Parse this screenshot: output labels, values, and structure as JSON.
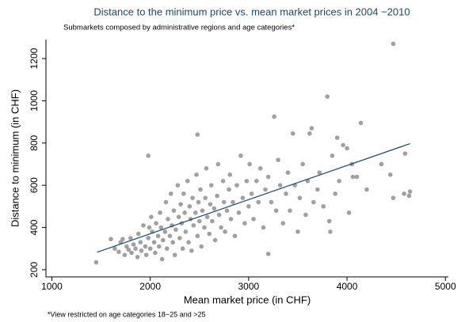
{
  "chart_data": {
    "type": "scatter",
    "title": "Distance to the minimum price vs. mean market prices in 2004 −2010",
    "subtitle": "Submarkets composed by administrative regions and age categories*",
    "xlabel": "Mean market price (in CHF)",
    "ylabel": "Distance to minimum (in CHF)",
    "note": "*View restricted on age categories 18−25 and >25",
    "color": "#a0a0a0",
    "x": [
      1450,
      1600,
      1640,
      1680,
      1700,
      1720,
      1740,
      1760,
      1780,
      1800,
      1810,
      1830,
      1850,
      1870,
      1880,
      1900,
      1910,
      1930,
      1950,
      1960,
      1980,
      1990,
      2000,
      2010,
      2020,
      2040,
      2050,
      2060,
      2080,
      2090,
      2100,
      2110,
      2120,
      2130,
      2150,
      2160,
      2170,
      2180,
      2200,
      2210,
      2220,
      2230,
      2240,
      2250,
      2260,
      2280,
      2290,
      2300,
      2310,
      2320,
      2330,
      2340,
      2350,
      2360,
      2380,
      2390,
      2400,
      2410,
      2420,
      2430,
      2440,
      2460,
      2470,
      2480,
      2490,
      2500,
      2510,
      2520,
      2530,
      2550,
      2560,
      2570,
      2580,
      2600,
      2610,
      2620,
      2630,
      2650,
      2660,
      2680,
      2690,
      2700,
      2720,
      2740,
      2750,
      2760,
      2780,
      2800,
      2810,
      2820,
      2840,
      2860,
      2880,
      2900,
      2920,
      2940,
      2960,
      2980,
      3000,
      3010,
      3030,
      3050,
      3080,
      3100,
      3120,
      3150,
      3170,
      3200,
      3200,
      3230,
      3260,
      3280,
      3300,
      3320,
      3350,
      3380,
      3400,
      3420,
      3450,
      3470,
      3500,
      3520,
      3550,
      3580,
      3600,
      3620,
      3640,
      3660,
      3700,
      3720,
      3760,
      3800,
      3820,
      3830,
      3850,
      3880,
      3900,
      3920,
      3960,
      4000,
      4020,
      4050,
      4060,
      4100,
      4140,
      4200,
      4440,
      4470,
      4470,
      4580,
      4590,
      4630,
      4640,
      1980,
      2480,
      4350
    ],
    "values": [
      235,
      345,
      300,
      285,
      330,
      345,
      270,
      310,
      295,
      350,
      280,
      320,
      300,
      260,
      370,
      330,
      290,
      410,
      310,
      270,
      350,
      400,
      300,
      450,
      380,
      330,
      280,
      420,
      360,
      310,
      470,
      400,
      250,
      340,
      380,
      520,
      300,
      440,
      360,
      560,
      410,
      330,
      480,
      270,
      390,
      600,
      450,
      350,
      510,
      420,
      300,
      560,
      470,
      380,
      620,
      330,
      500,
      440,
      290,
      540,
      410,
      470,
      650,
      360,
      520,
      430,
      580,
      310,
      480,
      400,
      540,
      680,
      450,
      370,
      510,
      600,
      430,
      490,
      340,
      550,
      700,
      460,
      400,
      620,
      520,
      380,
      480,
      580,
      650,
      440,
      520,
      360,
      600,
      470,
      740,
      540,
      420,
      620,
      500,
      700,
      560,
      440,
      620,
      520,
      680,
      400,
      580,
      275,
      640,
      520,
      925,
      480,
      720,
      600,
      420,
      560,
      660,
      480,
      845,
      600,
      380,
      540,
      700,
      460,
      620,
      845,
      870,
      520,
      580,
      660,
      500,
      1020,
      430,
      380,
      740,
      560,
      825,
      620,
      790,
      775,
      470,
      700,
      640,
      640,
      895,
      580,
      650,
      1270,
      540,
      560,
      750,
      550,
      570,
      740,
      840,
      700
    ],
    "fit": {
      "x": [
        1460,
        4640
      ],
      "values": [
        283,
        797
      ],
      "color": "#1a476f"
    },
    "xlim": [
      940,
      5030
    ],
    "ylim": [
      166,
      1290
    ],
    "xticks": [
      1000,
      2000,
      3000,
      4000,
      5000
    ],
    "yticks": [
      200,
      400,
      600,
      800,
      1000,
      1200
    ]
  }
}
